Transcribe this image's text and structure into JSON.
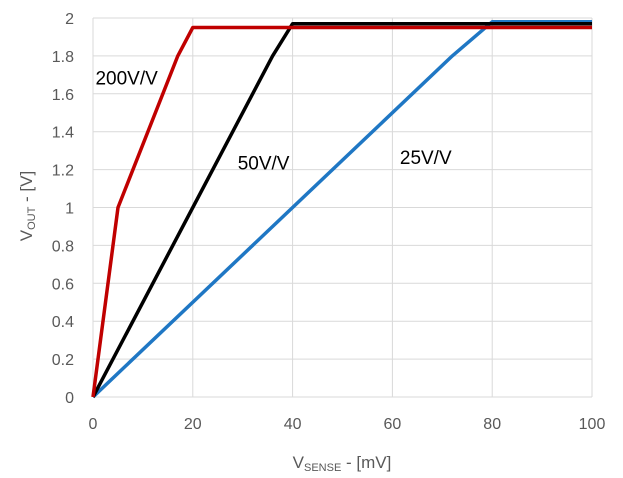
{
  "chart_data": {
    "type": "line",
    "xlabel": {
      "main": "V",
      "sub": "SENSE",
      "rest": " - [mV]"
    },
    "ylabel": {
      "main": "V",
      "sub": "OUT",
      "rest": " - [V]"
    },
    "xlim": [
      0,
      100
    ],
    "ylim": [
      0,
      2
    ],
    "xticks": [
      "0",
      "20",
      "40",
      "60",
      "80",
      "100"
    ],
    "yticks": [
      "0",
      "0.2",
      "0.4",
      "0.6",
      "0.8",
      "1",
      "1.2",
      "1.4",
      "1.6",
      "1.8",
      "2"
    ],
    "grid": true,
    "series": [
      {
        "color": "#1F77C4",
        "x": [
          0,
          40,
          72,
          80,
          100
        ],
        "y": [
          0,
          1.0,
          1.8,
          1.98,
          1.98
        ]
      },
      {
        "color": "#000000",
        "x": [
          0,
          20,
          36,
          40,
          100
        ],
        "y": [
          0,
          1.0,
          1.8,
          1.97,
          1.97
        ]
      },
      {
        "color": "#C00000",
        "x": [
          0,
          5,
          17,
          20,
          100
        ],
        "y": [
          0,
          1.0,
          1.8,
          1.95,
          1.95
        ]
      }
    ],
    "annotations": [
      {
        "text": "200V/V",
        "x": 0.5,
        "y": 1.65
      },
      {
        "text": "50V/V",
        "x": 29,
        "y": 1.2
      },
      {
        "text": "25V/V",
        "x": 61.5,
        "y": 1.23
      }
    ]
  }
}
